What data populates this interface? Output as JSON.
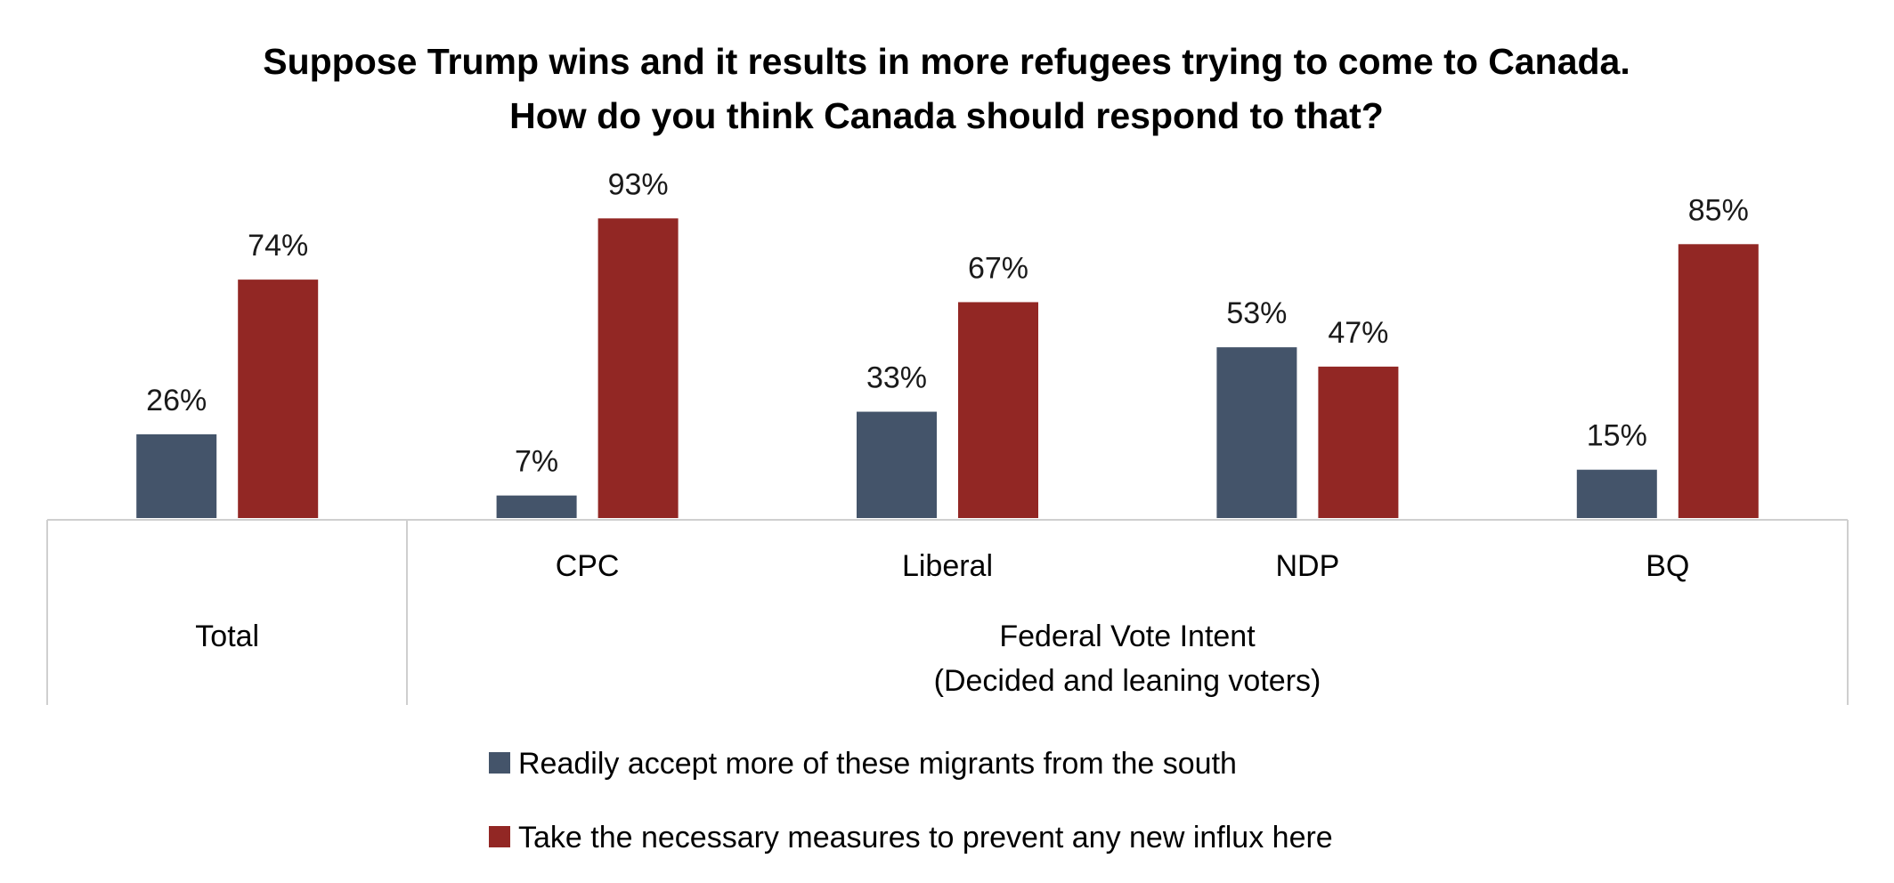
{
  "chart_data": {
    "type": "bar",
    "title": [
      "Suppose Trump wins and it results in more refugees trying to come to Canada.",
      "How do you think Canada should respond to that?"
    ],
    "categories": [
      "Total",
      "CPC",
      "Liberal",
      "NDP",
      "BQ"
    ],
    "category_labels": [
      "Total",
      "CPC",
      "Liberal",
      "NDP",
      "BQ"
    ],
    "group_label": [
      "Federal Vote Intent",
      "(Decided and leaning voters)"
    ],
    "series": [
      {
        "name": "Readily accept more of these migrants from the south",
        "color": "#44546a",
        "values": [
          26,
          7,
          33,
          53,
          15
        ]
      },
      {
        "name": "Take the necessary measures to prevent any new influx here",
        "color": "#922724",
        "values": [
          74,
          93,
          67,
          47,
          85
        ]
      }
    ],
    "value_suffix": "%",
    "ylim": [
      0,
      100
    ],
    "legend_position": "bottom",
    "grid": false
  }
}
